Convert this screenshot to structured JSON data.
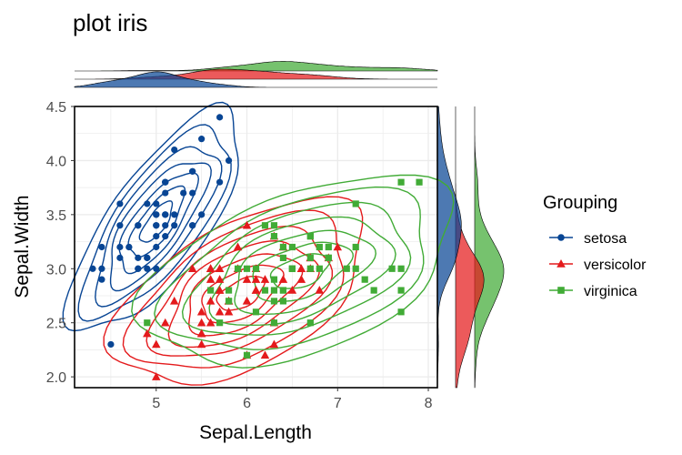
{
  "chart_data": {
    "type": "scatter",
    "title": "plot iris",
    "xlabel": "Sepal.Length",
    "ylabel": "Sepal.Width",
    "xlim": [
      4.1,
      8.1
    ],
    "ylim": [
      1.9,
      4.5
    ],
    "x_ticks": [
      "5",
      "6",
      "7",
      "8"
    ],
    "y_ticks": [
      "2.0",
      "2.5",
      "3.0",
      "3.5",
      "4.0",
      "4.5"
    ],
    "grid": true,
    "legend": {
      "title": "Grouping",
      "position": "right"
    },
    "marginal_plots": "density",
    "density_contours": true,
    "series": [
      {
        "name": "setosa",
        "color": "#084594",
        "marker": "circle",
        "points": [
          [
            5.1,
            3.5
          ],
          [
            4.9,
            3.0
          ],
          [
            4.7,
            3.2
          ],
          [
            4.6,
            3.1
          ],
          [
            5.0,
            3.6
          ],
          [
            5.4,
            3.9
          ],
          [
            4.6,
            3.4
          ],
          [
            5.0,
            3.4
          ],
          [
            4.4,
            2.9
          ],
          [
            4.9,
            3.1
          ],
          [
            5.4,
            3.7
          ],
          [
            4.8,
            3.4
          ],
          [
            4.8,
            3.0
          ],
          [
            4.3,
            3.0
          ],
          [
            5.8,
            4.0
          ],
          [
            5.7,
            4.4
          ],
          [
            5.4,
            3.9
          ],
          [
            5.1,
            3.5
          ],
          [
            5.7,
            3.8
          ],
          [
            5.1,
            3.8
          ],
          [
            5.4,
            3.4
          ],
          [
            5.1,
            3.7
          ],
          [
            4.6,
            3.6
          ],
          [
            5.1,
            3.3
          ],
          [
            4.8,
            3.4
          ],
          [
            5.0,
            3.0
          ],
          [
            5.0,
            3.4
          ],
          [
            5.2,
            3.5
          ],
          [
            5.2,
            3.4
          ],
          [
            4.7,
            3.2
          ],
          [
            4.8,
            3.1
          ],
          [
            5.4,
            3.4
          ],
          [
            5.2,
            4.1
          ],
          [
            5.5,
            4.2
          ],
          [
            4.9,
            3.1
          ],
          [
            5.0,
            3.2
          ],
          [
            5.5,
            3.5
          ],
          [
            4.9,
            3.6
          ],
          [
            4.4,
            3.0
          ],
          [
            5.1,
            3.4
          ],
          [
            5.0,
            3.5
          ],
          [
            4.5,
            2.3
          ],
          [
            4.4,
            3.2
          ],
          [
            5.0,
            3.5
          ],
          [
            5.1,
            3.8
          ],
          [
            4.8,
            3.0
          ],
          [
            5.1,
            3.8
          ],
          [
            4.6,
            3.2
          ],
          [
            5.3,
            3.7
          ],
          [
            5.0,
            3.3
          ]
        ]
      },
      {
        "name": "versicolor",
        "color": "#e41a1c",
        "marker": "triangle",
        "points": [
          [
            7.0,
            3.2
          ],
          [
            6.4,
            3.2
          ],
          [
            6.9,
            3.1
          ],
          [
            5.5,
            2.3
          ],
          [
            6.5,
            2.8
          ],
          [
            5.7,
            2.8
          ],
          [
            6.3,
            3.3
          ],
          [
            4.9,
            2.4
          ],
          [
            6.6,
            2.9
          ],
          [
            5.2,
            2.7
          ],
          [
            5.0,
            2.0
          ],
          [
            5.9,
            3.0
          ],
          [
            6.0,
            2.2
          ],
          [
            6.1,
            2.9
          ],
          [
            5.6,
            2.9
          ],
          [
            6.7,
            3.1
          ],
          [
            5.6,
            3.0
          ],
          [
            5.8,
            2.7
          ],
          [
            6.2,
            2.2
          ],
          [
            5.6,
            2.5
          ],
          [
            5.9,
            3.2
          ],
          [
            6.1,
            2.8
          ],
          [
            6.3,
            2.5
          ],
          [
            6.1,
            2.8
          ],
          [
            6.4,
            2.9
          ],
          [
            6.6,
            3.0
          ],
          [
            6.8,
            2.8
          ],
          [
            6.7,
            3.0
          ],
          [
            6.0,
            2.9
          ],
          [
            5.7,
            2.6
          ],
          [
            5.5,
            2.4
          ],
          [
            5.5,
            2.4
          ],
          [
            5.8,
            2.7
          ],
          [
            6.0,
            2.7
          ],
          [
            5.4,
            3.0
          ],
          [
            6.0,
            3.4
          ],
          [
            6.7,
            3.1
          ],
          [
            6.3,
            2.3
          ],
          [
            5.6,
            3.0
          ],
          [
            5.5,
            2.5
          ],
          [
            5.5,
            2.6
          ],
          [
            6.1,
            3.0
          ],
          [
            5.8,
            2.6
          ],
          [
            5.0,
            2.3
          ],
          [
            5.6,
            2.7
          ],
          [
            5.7,
            3.0
          ],
          [
            5.7,
            2.9
          ],
          [
            6.2,
            2.9
          ],
          [
            5.1,
            2.5
          ],
          [
            5.7,
            2.8
          ]
        ]
      },
      {
        "name": "virginica",
        "color": "#41ab36",
        "marker": "square",
        "points": [
          [
            6.3,
            3.3
          ],
          [
            5.8,
            2.7
          ],
          [
            7.1,
            3.0
          ],
          [
            6.3,
            2.9
          ],
          [
            6.5,
            3.0
          ],
          [
            7.6,
            3.0
          ],
          [
            4.9,
            2.5
          ],
          [
            7.3,
            2.9
          ],
          [
            6.7,
            2.5
          ],
          [
            7.2,
            3.6
          ],
          [
            6.5,
            3.2
          ],
          [
            6.4,
            2.7
          ],
          [
            6.8,
            3.0
          ],
          [
            5.7,
            2.5
          ],
          [
            5.8,
            2.8
          ],
          [
            6.4,
            3.2
          ],
          [
            6.5,
            3.0
          ],
          [
            7.7,
            3.8
          ],
          [
            7.7,
            2.6
          ],
          [
            6.0,
            2.2
          ],
          [
            6.9,
            3.2
          ],
          [
            5.6,
            2.8
          ],
          [
            7.7,
            2.8
          ],
          [
            6.3,
            2.7
          ],
          [
            6.7,
            3.3
          ],
          [
            7.2,
            3.2
          ],
          [
            6.2,
            2.8
          ],
          [
            6.1,
            3.0
          ],
          [
            6.4,
            2.8
          ],
          [
            7.2,
            3.0
          ],
          [
            7.4,
            2.8
          ],
          [
            7.9,
            3.8
          ],
          [
            6.4,
            2.8
          ],
          [
            6.3,
            2.8
          ],
          [
            6.1,
            2.6
          ],
          [
            7.7,
            3.0
          ],
          [
            6.3,
            3.4
          ],
          [
            6.4,
            3.1
          ],
          [
            6.0,
            3.0
          ],
          [
            6.9,
            3.1
          ],
          [
            6.7,
            3.1
          ],
          [
            6.9,
            3.1
          ],
          [
            5.8,
            2.7
          ],
          [
            6.8,
            3.2
          ],
          [
            6.7,
            3.3
          ],
          [
            6.7,
            3.0
          ],
          [
            6.3,
            2.5
          ],
          [
            6.5,
            3.0
          ],
          [
            6.2,
            3.4
          ],
          [
            5.9,
            3.0
          ]
        ]
      }
    ]
  }
}
